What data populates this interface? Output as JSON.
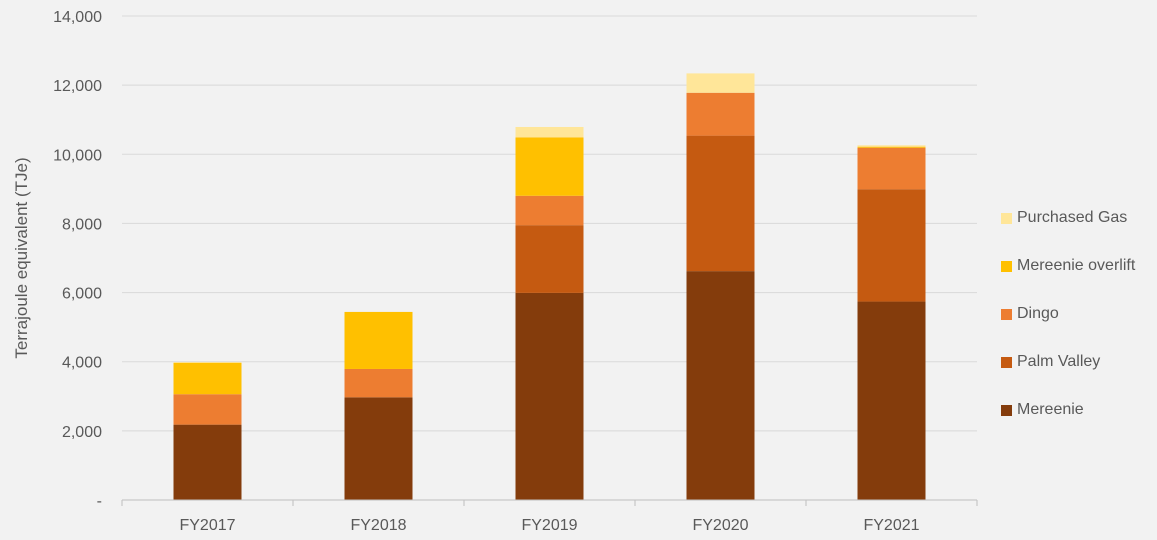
{
  "chart_data": {
    "type": "bar",
    "stacked": true,
    "title": "",
    "xlabel": "",
    "ylabel": "Terrajoule equivalent (TJe)",
    "categories": [
      "FY2017",
      "FY2018",
      "FY2019",
      "FY2020",
      "FY2021"
    ],
    "ylim": [
      0,
      14000
    ],
    "yticks": [
      0,
      2000,
      4000,
      6000,
      8000,
      10000,
      12000,
      14000
    ],
    "ytick_labels": [
      "-",
      "2,000",
      "4,000",
      "6,000",
      "8,000",
      "10,000",
      "12,000",
      "14,000"
    ],
    "grid": true,
    "legend_position": "right",
    "series": [
      {
        "name": "Mereenie",
        "color": "#843c0c",
        "values": [
          2180,
          2970,
          5990,
          6620,
          5740
        ]
      },
      {
        "name": "Palm Valley",
        "color": "#c55a11",
        "values": [
          0,
          0,
          1960,
          3920,
          3250
        ]
      },
      {
        "name": "Dingo",
        "color": "#ed7d31",
        "values": [
          880,
          820,
          850,
          1240,
          1200
        ]
      },
      {
        "name": "Mereenie overlift",
        "color": "#ffc000",
        "values": [
          910,
          1650,
          1690,
          0,
          30
        ]
      },
      {
        "name": "Purchased Gas",
        "color": "#ffe699",
        "values": [
          20,
          0,
          300,
          560,
          40
        ]
      }
    ],
    "legend_order": [
      "Purchased Gas",
      "Mereenie overlift",
      "Dingo",
      "Palm Valley",
      "Mereenie"
    ]
  }
}
